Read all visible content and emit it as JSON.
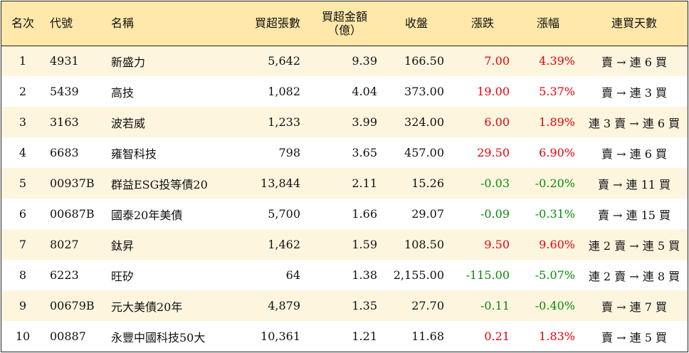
{
  "header": {
    "rank": "名次",
    "code": "代號",
    "name": "名稱",
    "net_buy_shares": "買超張數",
    "net_buy_amount_line1": "買超金額",
    "net_buy_amount_line2": "（億）",
    "close": "收盤",
    "change": "漲跌",
    "change_pct": "漲幅",
    "consecutive_days": "連買天數"
  },
  "colors": {
    "header_bg": "#ffe8a9",
    "stripe_bg": "#fef5df",
    "up": "#e8000b",
    "down": "#0a8a0a"
  },
  "rows": [
    {
      "rank": "1",
      "code": "4931",
      "name": "新盛力",
      "shares": "5,642",
      "amount": "9.39",
      "close": "166.50",
      "change": "7.00",
      "pct": "4.39%",
      "days": "賣 → 連 6 買",
      "dir": "up"
    },
    {
      "rank": "2",
      "code": "5439",
      "name": "高技",
      "shares": "1,082",
      "amount": "4.04",
      "close": "373.00",
      "change": "19.00",
      "pct": "5.37%",
      "days": "賣 → 連 3 買",
      "dir": "up"
    },
    {
      "rank": "3",
      "code": "3163",
      "name": "波若威",
      "shares": "1,233",
      "amount": "3.99",
      "close": "324.00",
      "change": "6.00",
      "pct": "1.89%",
      "days": "連 3 賣 → 連 6 買",
      "dir": "up"
    },
    {
      "rank": "4",
      "code": "6683",
      "name": "雍智科技",
      "shares": "798",
      "amount": "3.65",
      "close": "457.00",
      "change": "29.50",
      "pct": "6.90%",
      "days": "賣 → 連 6 買",
      "dir": "up"
    },
    {
      "rank": "5",
      "code": "00937B",
      "name": "群益ESG投等債20",
      "shares": "13,844",
      "amount": "2.11",
      "close": "15.26",
      "change": "-0.03",
      "pct": "-0.20%",
      "days": "賣 → 連 11 買",
      "dir": "down"
    },
    {
      "rank": "6",
      "code": "00687B",
      "name": "國泰20年美債",
      "shares": "5,700",
      "amount": "1.66",
      "close": "29.07",
      "change": "-0.09",
      "pct": "-0.31%",
      "days": "賣 → 連 15 買",
      "dir": "down"
    },
    {
      "rank": "7",
      "code": "8027",
      "name": "鈦昇",
      "shares": "1,462",
      "amount": "1.59",
      "close": "108.50",
      "change": "9.50",
      "pct": "9.60%",
      "days": "連 2 賣 → 連 5 買",
      "dir": "up"
    },
    {
      "rank": "8",
      "code": "6223",
      "name": "旺矽",
      "shares": "64",
      "amount": "1.38",
      "close": "2,155.00",
      "change": "-115.00",
      "pct": "-5.07%",
      "days": "連 2 賣 → 連 8 買",
      "dir": "down"
    },
    {
      "rank": "9",
      "code": "00679B",
      "name": "元大美債20年",
      "shares": "4,879",
      "amount": "1.35",
      "close": "27.70",
      "change": "-0.11",
      "pct": "-0.40%",
      "days": "賣 → 連 7 買",
      "dir": "down"
    },
    {
      "rank": "10",
      "code": "00887",
      "name": "永豐中國科技50大",
      "shares": "10,361",
      "amount": "1.21",
      "close": "11.68",
      "change": "0.21",
      "pct": "1.83%",
      "days": "賣 → 連 5 買",
      "dir": "up"
    }
  ]
}
